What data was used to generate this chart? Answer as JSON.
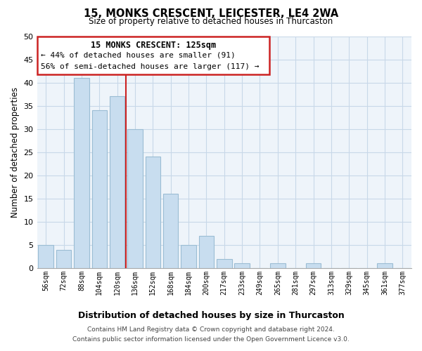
{
  "title": "15, MONKS CRESCENT, LEICESTER, LE4 2WA",
  "subtitle": "Size of property relative to detached houses in Thurcaston",
  "xlabel": "Distribution of detached houses by size in Thurcaston",
  "ylabel": "Number of detached properties",
  "bin_labels": [
    "56sqm",
    "72sqm",
    "88sqm",
    "104sqm",
    "120sqm",
    "136sqm",
    "152sqm",
    "168sqm",
    "184sqm",
    "200sqm",
    "217sqm",
    "233sqm",
    "249sqm",
    "265sqm",
    "281sqm",
    "297sqm",
    "313sqm",
    "329sqm",
    "345sqm",
    "361sqm",
    "377sqm"
  ],
  "bin_values": [
    5,
    4,
    41,
    34,
    37,
    30,
    24,
    16,
    5,
    7,
    2,
    1,
    0,
    1,
    0,
    1,
    0,
    0,
    0,
    1,
    0
  ],
  "bar_color": "#c8ddef",
  "bar_edge_color": "#9bbdd4",
  "ylim": [
    0,
    50
  ],
  "yticks": [
    0,
    5,
    10,
    15,
    20,
    25,
    30,
    35,
    40,
    45,
    50
  ],
  "property_line_bin": 4,
  "annotation_line1": "15 MONKS CRESCENT: 125sqm",
  "annotation_line2": "← 44% of detached houses are smaller (91)",
  "annotation_line3": "56% of semi-detached houses are larger (117) →",
  "footer_line1": "Contains HM Land Registry data © Crown copyright and database right 2024.",
  "footer_line2": "Contains public sector information licensed under the Open Government Licence v3.0.",
  "red_line_color": "#cc2222",
  "grid_color": "#c8d8e8",
  "background_color": "#ffffff",
  "plot_bg_color": "#eef4fa"
}
